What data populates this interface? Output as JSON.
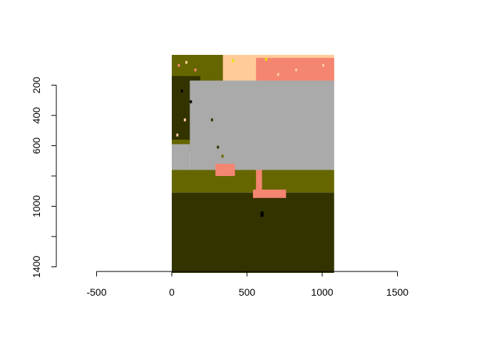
{
  "chart_data": {
    "type": "raster-image",
    "title": "",
    "xlabel": "",
    "ylabel": "",
    "xlim": [
      -500,
      1500
    ],
    "ylim": [
      1400,
      200
    ],
    "x_ticks": [
      {
        "value": -500,
        "label": "-500"
      },
      {
        "value": 0,
        "label": "0"
      },
      {
        "value": 500,
        "label": "500"
      },
      {
        "value": 1000,
        "label": "1000"
      },
      {
        "value": 1500,
        "label": "1500"
      }
    ],
    "y_ticks": [
      {
        "value": 200,
        "label": "200"
      },
      {
        "value": 400,
        "label": "400"
      },
      {
        "value": 600,
        "label": "600"
      },
      {
        "value": 800,
        "label": ""
      },
      {
        "value": 1000,
        "label": "1000"
      },
      {
        "value": 1200,
        "label": ""
      },
      {
        "value": 1400,
        "label": "1400"
      }
    ],
    "image_extent": {
      "x": [
        0,
        1080
      ],
      "y": [
        0,
        1440
      ]
    },
    "palette": {
      "dark_olive": "#333300",
      "olive": "#666600",
      "gray": "#aaaaaa",
      "salmon": "#f48570",
      "peach": "#ffcc99",
      "black": "#000000",
      "yellow": "#e6e600"
    },
    "regions": [
      {
        "name": "top-wall",
        "color": "peach",
        "y": [
          0,
          220
        ],
        "x": [
          0,
          1080
        ]
      },
      {
        "name": "top-wall-pink",
        "color": "salmon",
        "y": [
          20,
          190
        ],
        "x": [
          560,
          1080
        ]
      },
      {
        "name": "tree-foliage",
        "color": "olive",
        "y": [
          0,
          640
        ],
        "x": [
          0,
          340
        ]
      },
      {
        "name": "tree-dark",
        "color": "dark_olive",
        "y": [
          140,
          560
        ],
        "x": [
          0,
          190
        ]
      },
      {
        "name": "gray-pavement",
        "color": "gray",
        "y": [
          170,
          760
        ],
        "x": [
          120,
          1080
        ]
      },
      {
        "name": "gray-pavement-left",
        "color": "gray",
        "y": [
          590,
          760
        ],
        "x": [
          0,
          120
        ]
      },
      {
        "name": "grass-bank",
        "color": "olive",
        "y": [
          760,
          910
        ],
        "x": [
          0,
          1080
        ]
      },
      {
        "name": "water",
        "color": "dark_olive",
        "y": [
          910,
          1440
        ],
        "x": [
          0,
          1080
        ]
      },
      {
        "name": "flamingo-left-body",
        "color": "salmon",
        "y": [
          720,
          800
        ],
        "x": [
          290,
          420
        ]
      },
      {
        "name": "flamingo-right-body",
        "color": "salmon",
        "y": [
          890,
          945
        ],
        "x": [
          540,
          760
        ]
      },
      {
        "name": "flamingo-right-neck",
        "color": "salmon",
        "y": [
          760,
          900
        ],
        "x": [
          560,
          600
        ]
      },
      {
        "name": "bird-reflection",
        "color": "black",
        "y": [
          1035,
          1070
        ],
        "x": [
          590,
          610
        ]
      }
    ]
  }
}
